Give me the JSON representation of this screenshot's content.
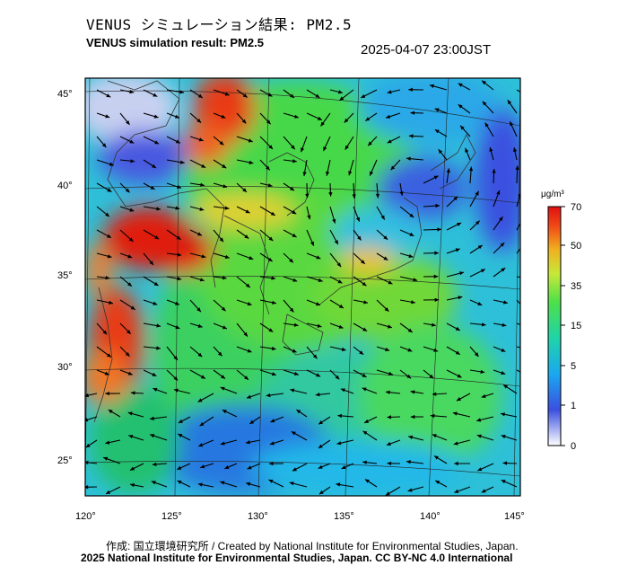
{
  "title_jp": "VENUS シミュレーション結果: PM2.5",
  "title_en": "VENUS simulation result: PM2.5",
  "timestamp": "2025-04-07 23:00JST",
  "lat_labels": [
    "45°",
    "40°",
    "35°",
    "30°",
    "25°"
  ],
  "lon_labels": [
    "120°",
    "125°",
    "130°",
    "135°",
    "140°",
    "145°"
  ],
  "colorbar": {
    "unit": "μg/m³",
    "ticks": [
      "70",
      "50",
      "35",
      "15",
      "5",
      "1",
      "0"
    ],
    "colors": [
      "#ffffff",
      "#3a4fe0",
      "#1ba8f0",
      "#1fd4a8",
      "#4de04a",
      "#c8e838",
      "#f0b020",
      "#f04818",
      "#e01010"
    ]
  },
  "credit_line1": "作成: 国立環境研究所 / Created by National Institute for Environmental Studies, Japan.",
  "credit_line2": "2025 National Institute for Environmental Studies, Japan. CC BY-NC 4.0 International"
}
